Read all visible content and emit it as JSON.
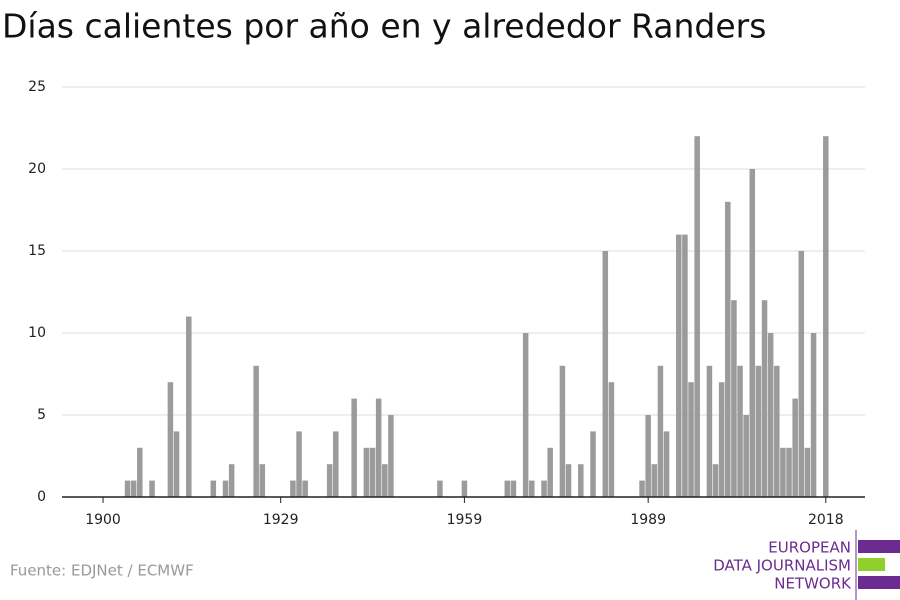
{
  "chart_data": {
    "type": "bar",
    "title": "Días calientes por año en y alrededor Randers",
    "source": "Fuente: EDJNet / ECMWF",
    "logo": [
      "EUROPEAN",
      "DATA JOURNALISM",
      "NETWORK"
    ],
    "color": "#9b9b9b",
    "x": [
      1900,
      1901,
      1902,
      1903,
      1904,
      1905,
      1906,
      1907,
      1908,
      1909,
      1910,
      1911,
      1912,
      1913,
      1914,
      1915,
      1916,
      1917,
      1918,
      1919,
      1920,
      1921,
      1922,
      1923,
      1924,
      1925,
      1926,
      1927,
      1928,
      1929,
      1930,
      1931,
      1932,
      1933,
      1934,
      1935,
      1936,
      1937,
      1938,
      1939,
      1940,
      1941,
      1942,
      1943,
      1944,
      1945,
      1946,
      1947,
      1948,
      1949,
      1950,
      1951,
      1952,
      1953,
      1954,
      1955,
      1956,
      1957,
      1958,
      1959,
      1960,
      1961,
      1962,
      1963,
      1964,
      1965,
      1966,
      1967,
      1968,
      1969,
      1970,
      1971,
      1972,
      1973,
      1974,
      1975,
      1976,
      1977,
      1978,
      1979,
      1980,
      1981,
      1982,
      1983,
      1984,
      1985,
      1986,
      1987,
      1988,
      1989,
      1990,
      1991,
      1992,
      1993,
      1994,
      1995,
      1996,
      1997,
      1998,
      1999,
      2000,
      2001,
      2002,
      2003,
      2004,
      2005,
      2006,
      2007,
      2008,
      2009,
      2010,
      2011,
      2012,
      2013,
      2014,
      2015,
      2016,
      2017,
      2018
    ],
    "values": [
      0,
      0,
      0,
      0,
      1,
      1,
      3,
      0,
      1,
      0,
      0,
      7,
      4,
      0,
      11,
      0,
      0,
      0,
      1,
      0,
      1,
      2,
      0,
      0,
      0,
      8,
      2,
      0,
      0,
      0,
      0,
      1,
      4,
      1,
      0,
      0,
      0,
      2,
      4,
      0,
      0,
      6,
      0,
      3,
      3,
      6,
      2,
      5,
      0,
      0,
      0,
      0,
      0,
      0,
      0,
      1,
      0,
      0,
      0,
      1,
      0,
      0,
      0,
      0,
      0,
      0,
      1,
      1,
      0,
      10,
      1,
      0,
      1,
      3,
      0,
      8,
      2,
      0,
      2,
      0,
      4,
      0,
      15,
      7,
      0,
      0,
      0,
      0,
      1,
      5,
      2,
      8,
      4,
      0,
      16,
      16,
      7,
      22,
      0,
      8,
      2,
      7,
      18,
      12,
      8,
      5,
      20,
      8,
      12,
      10,
      8,
      3,
      3,
      6,
      15,
      3,
      10,
      0,
      22
    ],
    "xlim": [
      1893.3,
      2024.4
    ],
    "xticks": [
      1900,
      1929,
      1959,
      1989,
      2018
    ],
    "ylim": [
      0,
      25
    ],
    "yticks": [
      0,
      5,
      10,
      15,
      20,
      25
    ],
    "grid": true
  }
}
